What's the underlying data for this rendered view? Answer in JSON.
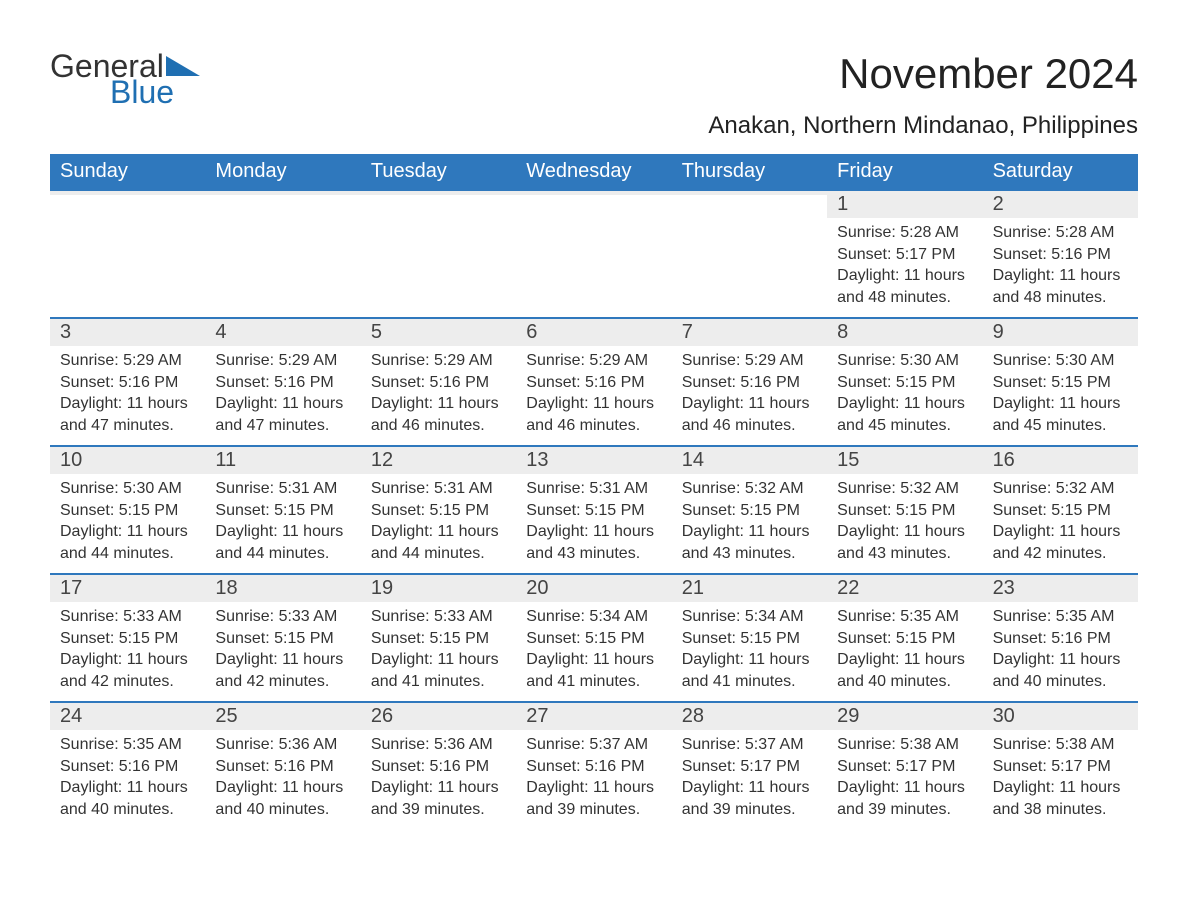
{
  "logo": {
    "general": "General",
    "blue": "Blue",
    "tri_color": "#1f6fb2"
  },
  "header": {
    "month_title": "November 2024",
    "location": "Anakan, Northern Mindanao, Philippines"
  },
  "colors": {
    "header_bg": "#2f78bd",
    "header_text": "#ffffff",
    "daynum_bg": "#ededed",
    "border": "#2f78bd",
    "body_text": "#333333",
    "page_bg": "#ffffff"
  },
  "weekdays": [
    "Sunday",
    "Monday",
    "Tuesday",
    "Wednesday",
    "Thursday",
    "Friday",
    "Saturday"
  ],
  "weeks": [
    [
      null,
      null,
      null,
      null,
      null,
      {
        "n": "1",
        "sunrise": "5:28 AM",
        "sunset": "5:17 PM",
        "daylight": "11 hours and 48 minutes."
      },
      {
        "n": "2",
        "sunrise": "5:28 AM",
        "sunset": "5:16 PM",
        "daylight": "11 hours and 48 minutes."
      }
    ],
    [
      {
        "n": "3",
        "sunrise": "5:29 AM",
        "sunset": "5:16 PM",
        "daylight": "11 hours and 47 minutes."
      },
      {
        "n": "4",
        "sunrise": "5:29 AM",
        "sunset": "5:16 PM",
        "daylight": "11 hours and 47 minutes."
      },
      {
        "n": "5",
        "sunrise": "5:29 AM",
        "sunset": "5:16 PM",
        "daylight": "11 hours and 46 minutes."
      },
      {
        "n": "6",
        "sunrise": "5:29 AM",
        "sunset": "5:16 PM",
        "daylight": "11 hours and 46 minutes."
      },
      {
        "n": "7",
        "sunrise": "5:29 AM",
        "sunset": "5:16 PM",
        "daylight": "11 hours and 46 minutes."
      },
      {
        "n": "8",
        "sunrise": "5:30 AM",
        "sunset": "5:15 PM",
        "daylight": "11 hours and 45 minutes."
      },
      {
        "n": "9",
        "sunrise": "5:30 AM",
        "sunset": "5:15 PM",
        "daylight": "11 hours and 45 minutes."
      }
    ],
    [
      {
        "n": "10",
        "sunrise": "5:30 AM",
        "sunset": "5:15 PM",
        "daylight": "11 hours and 44 minutes."
      },
      {
        "n": "11",
        "sunrise": "5:31 AM",
        "sunset": "5:15 PM",
        "daylight": "11 hours and 44 minutes."
      },
      {
        "n": "12",
        "sunrise": "5:31 AM",
        "sunset": "5:15 PM",
        "daylight": "11 hours and 44 minutes."
      },
      {
        "n": "13",
        "sunrise": "5:31 AM",
        "sunset": "5:15 PM",
        "daylight": "11 hours and 43 minutes."
      },
      {
        "n": "14",
        "sunrise": "5:32 AM",
        "sunset": "5:15 PM",
        "daylight": "11 hours and 43 minutes."
      },
      {
        "n": "15",
        "sunrise": "5:32 AM",
        "sunset": "5:15 PM",
        "daylight": "11 hours and 43 minutes."
      },
      {
        "n": "16",
        "sunrise": "5:32 AM",
        "sunset": "5:15 PM",
        "daylight": "11 hours and 42 minutes."
      }
    ],
    [
      {
        "n": "17",
        "sunrise": "5:33 AM",
        "sunset": "5:15 PM",
        "daylight": "11 hours and 42 minutes."
      },
      {
        "n": "18",
        "sunrise": "5:33 AM",
        "sunset": "5:15 PM",
        "daylight": "11 hours and 42 minutes."
      },
      {
        "n": "19",
        "sunrise": "5:33 AM",
        "sunset": "5:15 PM",
        "daylight": "11 hours and 41 minutes."
      },
      {
        "n": "20",
        "sunrise": "5:34 AM",
        "sunset": "5:15 PM",
        "daylight": "11 hours and 41 minutes."
      },
      {
        "n": "21",
        "sunrise": "5:34 AM",
        "sunset": "5:15 PM",
        "daylight": "11 hours and 41 minutes."
      },
      {
        "n": "22",
        "sunrise": "5:35 AM",
        "sunset": "5:15 PM",
        "daylight": "11 hours and 40 minutes."
      },
      {
        "n": "23",
        "sunrise": "5:35 AM",
        "sunset": "5:16 PM",
        "daylight": "11 hours and 40 minutes."
      }
    ],
    [
      {
        "n": "24",
        "sunrise": "5:35 AM",
        "sunset": "5:16 PM",
        "daylight": "11 hours and 40 minutes."
      },
      {
        "n": "25",
        "sunrise": "5:36 AM",
        "sunset": "5:16 PM",
        "daylight": "11 hours and 40 minutes."
      },
      {
        "n": "26",
        "sunrise": "5:36 AM",
        "sunset": "5:16 PM",
        "daylight": "11 hours and 39 minutes."
      },
      {
        "n": "27",
        "sunrise": "5:37 AM",
        "sunset": "5:16 PM",
        "daylight": "11 hours and 39 minutes."
      },
      {
        "n": "28",
        "sunrise": "5:37 AM",
        "sunset": "5:17 PM",
        "daylight": "11 hours and 39 minutes."
      },
      {
        "n": "29",
        "sunrise": "5:38 AM",
        "sunset": "5:17 PM",
        "daylight": "11 hours and 39 minutes."
      },
      {
        "n": "30",
        "sunrise": "5:38 AM",
        "sunset": "5:17 PM",
        "daylight": "11 hours and 38 minutes."
      }
    ]
  ],
  "labels": {
    "sunrise": "Sunrise: ",
    "sunset": "Sunset: ",
    "daylight": "Daylight: "
  }
}
